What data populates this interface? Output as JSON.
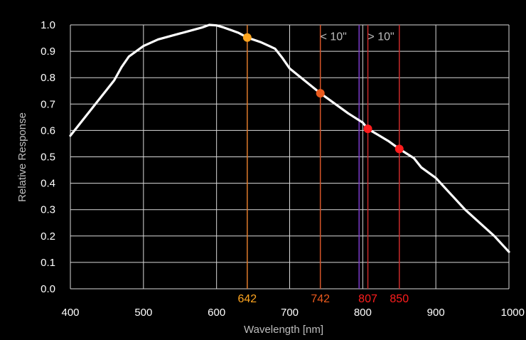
{
  "chart_data": {
    "type": "line",
    "xlabel": "Wavelength [nm]",
    "ylabel": "Relative Response",
    "xlim": [
      400,
      1000
    ],
    "ylim": [
      0,
      1.0
    ],
    "xticks": [
      400,
      500,
      600,
      700,
      800,
      900,
      1000
    ],
    "xtick_labels": [
      "400",
      "500",
      "600",
      "700",
      "800",
      "900",
      "1000"
    ],
    "yticks": [
      0.0,
      0.1,
      0.2,
      0.3,
      0.4,
      0.5,
      0.6,
      0.7,
      0.8,
      0.9,
      1.0
    ],
    "ytick_labels": [
      "0.0",
      "0.1",
      "0.2",
      "0.3",
      "0.4",
      "0.5",
      "0.6",
      "0.7",
      "0.8",
      "0.9",
      "1.0"
    ],
    "grid": true,
    "background": "#000000",
    "grid_color": "#d9d9d9",
    "line_color": "#ffffff",
    "series": [
      {
        "x": [
          400,
          420,
          440,
          460,
          470,
          480,
          490,
          500,
          520,
          540,
          560,
          580,
          590,
          600,
          610,
          620,
          630,
          642,
          660,
          680,
          690,
          700,
          720,
          742,
          760,
          780,
          800,
          807,
          820,
          835,
          850,
          870,
          880,
          900,
          920,
          940,
          960,
          980,
          1000
        ],
        "y": [
          0.58,
          0.65,
          0.72,
          0.79,
          0.84,
          0.88,
          0.9,
          0.92,
          0.945,
          0.96,
          0.975,
          0.99,
          1.0,
          0.998,
          0.99,
          0.98,
          0.97,
          0.952,
          0.935,
          0.91,
          0.875,
          0.835,
          0.79,
          0.741,
          0.705,
          0.665,
          0.63,
          0.606,
          0.585,
          0.56,
          0.53,
          0.495,
          0.46,
          0.42,
          0.36,
          0.3,
          0.25,
          0.2,
          0.14
        ]
      }
    ],
    "markers": [
      {
        "label": "642",
        "x": 642,
        "y": 0.952,
        "color": "#ffa51f",
        "line_color": "#e07a2b"
      },
      {
        "label": "742",
        "x": 742,
        "y": 0.741,
        "color": "#ea5a1d",
        "line_color": "#d5552a"
      },
      {
        "label": "807",
        "x": 807,
        "y": 0.606,
        "color": "#ff1d1d",
        "line_color": "#c92a2a"
      },
      {
        "label": "850",
        "x": 850,
        "y": 0.53,
        "color": "#ff1d1d",
        "line_color": "#c92a2a"
      }
    ],
    "boundary_line": {
      "x": 795,
      "color": "#7a39c9"
    },
    "annotations": [
      {
        "text": "< 10\"",
        "x": 760,
        "y": 0.955
      },
      {
        "text": "> 10\"",
        "x": 825,
        "y": 0.955
      }
    ]
  }
}
